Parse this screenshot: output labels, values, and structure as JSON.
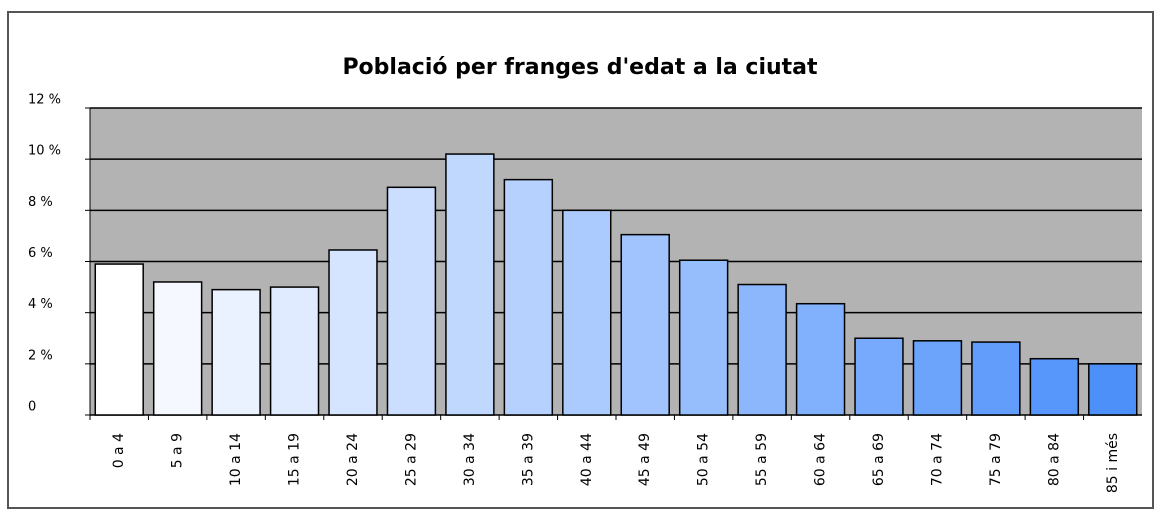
{
  "chart_data": {
    "type": "bar",
    "title": "Població per franges d'edat a la ciutat",
    "categories": [
      "0 a 4",
      "5 a 9",
      "10 a 14",
      "15 a 19",
      "20 a 24",
      "25 a 29",
      "30 a 34",
      "35 a 39",
      "40 a 44",
      "45 a 49",
      "50 a 54",
      "55 a 59",
      "60 a 64",
      "65 a 69",
      "70 a 74",
      "75 a 79",
      "80 a 84",
      "85 i més"
    ],
    "values": [
      5.9,
      5.2,
      4.9,
      5.0,
      6.45,
      8.9,
      10.2,
      9.2,
      8.0,
      7.05,
      6.05,
      5.1,
      4.35,
      3.0,
      2.9,
      2.85,
      2.2,
      2.0
    ],
    "colors": [
      "#ffffff",
      "#f5f8ff",
      "#eaf2ff",
      "#e0ebff",
      "#d5e5ff",
      "#cbdeff",
      "#c0d8fe",
      "#b6d1fe",
      "#abcbfe",
      "#a1c4fe",
      "#96befd",
      "#8cb7fd",
      "#81b1fd",
      "#77aafc",
      "#6ca4fc",
      "#629dfc",
      "#5797fb",
      "#4d90fa"
    ],
    "ylim": [
      0,
      12
    ],
    "yticks": [
      0,
      {
        "value": 2,
        "label": "2 %"
      },
      {
        "value": 4,
        "label": "4 %"
      },
      {
        "value": 6,
        "label": "6 %"
      },
      {
        "value": 8,
        "label": "8 %"
      },
      {
        "value": 10,
        "label": "10 %"
      },
      {
        "value": 12,
        "label": "12 %"
      }
    ],
    "grid": true
  }
}
